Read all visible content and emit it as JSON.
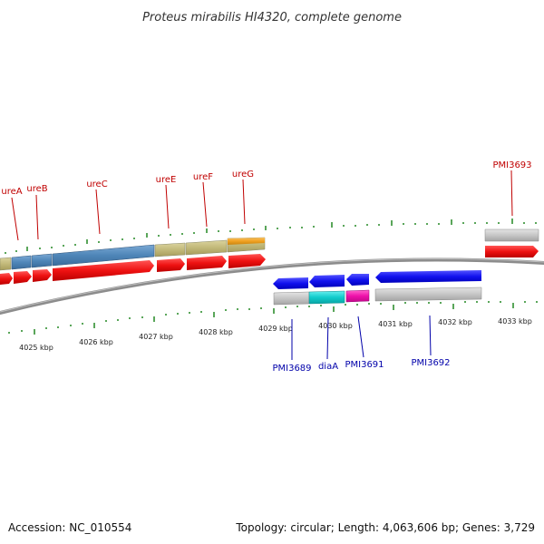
{
  "title": "Proteus mirabilis HI4320, complete genome",
  "footer": {
    "accession": "Accession: NC_010554",
    "summary": "Topology: circular; Length: 4,063,606 bp; Genes: 3,729"
  },
  "colors": {
    "background": "#ffffff",
    "tick_green": "#228822",
    "backbone_gray": "#8c8c8c",
    "forward_cds_red": "#ee1111",
    "reverse_cds_blue": "#1111ee",
    "label_red": "#c00000",
    "label_blue": "#0000aa",
    "gene_tan": "#c2b97a",
    "gene_steelblue": "#4f86b8",
    "gene_orange": "#f0a020",
    "gene_gray": "#c0c0c0",
    "gene_cyan": "#11cccc",
    "gene_magenta": "#ee11aa"
  },
  "scale": {
    "unit": "kbp",
    "labels": [
      "4025 kbp",
      "4026 kbp",
      "4027 kbp",
      "4028 kbp",
      "4029 kbp",
      "4030 kbp",
      "4031 kbp",
      "4032 kbp",
      "4033 kbp"
    ]
  },
  "genes_forward": [
    {
      "name": "ureA",
      "color": "gene_steelblue"
    },
    {
      "name": "ureB",
      "color": "gene_steelblue"
    },
    {
      "name": "ureC",
      "color": "gene_steelblue"
    },
    {
      "name": "ureE",
      "color": "gene_tan"
    },
    {
      "name": "ureF",
      "color": "gene_tan"
    },
    {
      "name": "ureG",
      "color": "gene_orange"
    },
    {
      "name": "PMI3693",
      "color": "gene_gray"
    }
  ],
  "genes_reverse": [
    {
      "name": "PMI3689",
      "color": "gene_gray"
    },
    {
      "name": "diaA",
      "color": "gene_cyan"
    },
    {
      "name": "PMI3691",
      "color": "gene_magenta"
    },
    {
      "name": "PMI3692",
      "color": "gene_gray"
    }
  ]
}
